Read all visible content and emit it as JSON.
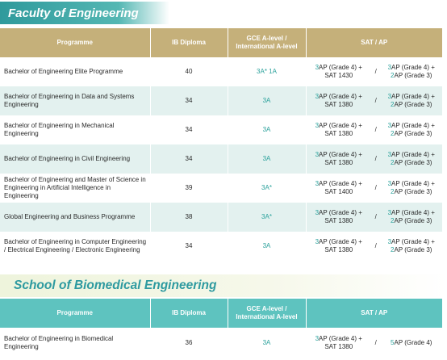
{
  "engineering": {
    "title": "Faculty of Engineering",
    "headers": {
      "programme": "Programme",
      "ib": "IB Diploma",
      "gce_line1": "GCE A-level /",
      "gce_line2": "International A-level",
      "sat": "SAT / AP"
    },
    "rows": [
      {
        "programme": "Bachelor of Engineering Elite Programme",
        "ib": "40",
        "alevel": [
          [
            "3A*",
            "teal"
          ],
          [
            " ",
            ""
          ],
          [
            "1A",
            "teal"
          ]
        ],
        "sat_left_1": [
          "3",
          "AP (Grade 4) +"
        ],
        "sat_left_2": "SAT 1430",
        "slash": "/",
        "sat_right_1": [
          "3",
          "AP (Grade 4) +"
        ],
        "sat_right_2": [
          "2",
          "AP (Grade 3)"
        ]
      },
      {
        "programme": "Bachelor of Engineering in Data and Systems Engineering",
        "ib": "34",
        "alevel": [
          [
            "3A",
            "teal"
          ]
        ],
        "sat_left_1": [
          "3",
          "AP (Grade 4) +"
        ],
        "sat_left_2": "SAT 1380",
        "slash": "/",
        "sat_right_1": [
          "3",
          "AP (Grade 4) +"
        ],
        "sat_right_2": [
          "2",
          "AP (Grade 3)"
        ]
      },
      {
        "programme": "Bachelor of Engineering in Mechanical Engineering",
        "ib": "34",
        "alevel": [
          [
            "3A",
            "teal"
          ]
        ],
        "sat_left_1": [
          "3",
          "AP (Grade 4) +"
        ],
        "sat_left_2": "SAT 1380",
        "slash": "/",
        "sat_right_1": [
          "3",
          "AP (Grade 4) +"
        ],
        "sat_right_2": [
          "2",
          "AP (Grade 3)"
        ]
      },
      {
        "programme": "Bachelor of Engineering in Civil Engineering",
        "ib": "34",
        "alevel": [
          [
            "3A",
            "teal"
          ]
        ],
        "sat_left_1": [
          "3",
          "AP (Grade 4) +"
        ],
        "sat_left_2": "SAT 1380",
        "slash": "/",
        "sat_right_1": [
          "3",
          "AP (Grade 4) +"
        ],
        "sat_right_2": [
          "2",
          "AP (Grade 3)"
        ]
      },
      {
        "programme": "Bachelor of Engineering and Master of Science in Engineering in Artificial Intelligence in Engineering",
        "ib": "39",
        "alevel": [
          [
            "3A*",
            "teal"
          ]
        ],
        "sat_left_1": [
          "3",
          "AP (Grade 4) +"
        ],
        "sat_left_2": "SAT 1400",
        "slash": "/",
        "sat_right_1": [
          "3",
          "AP (Grade 4) +"
        ],
        "sat_right_2": [
          "2",
          "AP (Grade 3)"
        ]
      },
      {
        "programme": "Global Engineering and Business Programme",
        "ib": "38",
        "alevel": [
          [
            "3A*",
            "teal"
          ]
        ],
        "sat_left_1": [
          "3",
          "AP (Grade 4) +"
        ],
        "sat_left_2": "SAT 1380",
        "slash": "/",
        "sat_right_1": [
          "3",
          "AP (Grade 4) +"
        ],
        "sat_right_2": [
          "2",
          "AP (Grade 3)"
        ]
      },
      {
        "programme": "Bachelor of Engineering in Computer Engineering / Electrical Engineering / Electronic Engineering",
        "ib": "34",
        "alevel": [
          [
            "3A",
            "teal"
          ]
        ],
        "sat_left_1": [
          "3",
          "AP (Grade 4) +"
        ],
        "sat_left_2": "SAT 1380",
        "slash": "/",
        "sat_right_1": [
          "3",
          "AP (Grade 4) +"
        ],
        "sat_right_2": [
          "2",
          "AP (Grade 3)"
        ]
      }
    ]
  },
  "biomedical": {
    "title": "School of Biomedical Engineering",
    "headers": {
      "programme": "Programme",
      "ib": "IB Diploma",
      "gce_line1": "GCE A-level /",
      "gce_line2": "International A-level",
      "sat": "SAT / AP"
    },
    "rows": [
      {
        "programme": "Bachelor of Engineering in Biomedical Engineering",
        "ib": "36",
        "alevel": [
          [
            "3A",
            "teal"
          ]
        ],
        "sat_left_1": [
          "3",
          "AP (Grade 4) +"
        ],
        "sat_left_2": "SAT 1380",
        "slash": "/",
        "sat_right_single": [
          "5",
          "AP (Grade 4)"
        ]
      }
    ]
  },
  "colors": {
    "eng_header": "#c5b07a",
    "bme_header": "#5ec3bf",
    "row_alt": "#e3f1ef",
    "accent_teal": "#2aa19b"
  }
}
